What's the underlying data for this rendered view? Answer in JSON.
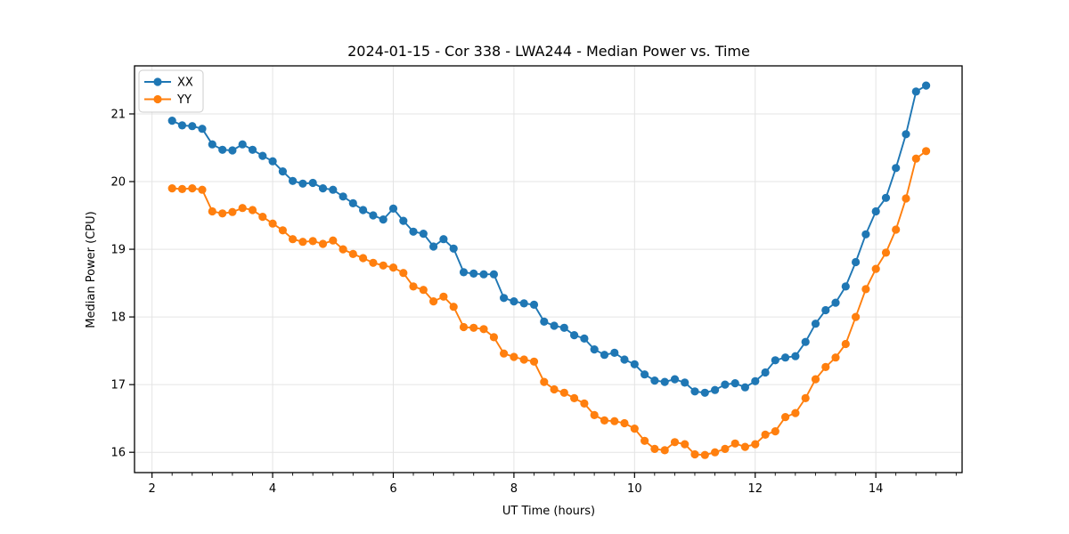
{
  "chart_data": {
    "type": "line",
    "title": "2024-01-15 - Cor 338 - LWA244 - Median Power vs. Time",
    "xlabel": "UT Time (hours)",
    "ylabel": "Median Power (CPU)",
    "xlim": [
      1.71,
      15.43
    ],
    "ylim": [
      15.7,
      21.71
    ],
    "xticks": [
      2,
      4,
      6,
      8,
      10,
      12,
      14
    ],
    "yticks": [
      16,
      17,
      18,
      19,
      20,
      21
    ],
    "x_minor_tick_step": 0.3333,
    "grid": true,
    "grid_color": "#e4e4e4",
    "legend_position": "upper left",
    "x": [
      2.333,
      2.5,
      2.667,
      2.833,
      3.0,
      3.167,
      3.333,
      3.5,
      3.667,
      3.833,
      4.0,
      4.167,
      4.333,
      4.5,
      4.667,
      4.833,
      5.0,
      5.167,
      5.333,
      5.5,
      5.667,
      5.833,
      6.0,
      6.167,
      6.333,
      6.5,
      6.667,
      6.833,
      7.0,
      7.167,
      7.333,
      7.5,
      7.667,
      7.833,
      8.0,
      8.167,
      8.333,
      8.5,
      8.667,
      8.833,
      9.0,
      9.167,
      9.333,
      9.5,
      9.667,
      9.833,
      10.0,
      10.167,
      10.333,
      10.5,
      10.667,
      10.833,
      11.0,
      11.167,
      11.333,
      11.5,
      11.667,
      11.833,
      12.0,
      12.167,
      12.333,
      12.5,
      12.667,
      12.833,
      13.0,
      13.167,
      13.333,
      13.5,
      13.667,
      13.833,
      14.0,
      14.167,
      14.333,
      14.5,
      14.667,
      14.833
    ],
    "series": [
      {
        "name": "XX",
        "color": "#1f77b4",
        "marker": "circle",
        "values": [
          20.9,
          20.83,
          20.82,
          20.78,
          20.55,
          20.47,
          20.46,
          20.55,
          20.47,
          20.38,
          20.3,
          20.15,
          20.01,
          19.97,
          19.98,
          19.9,
          19.88,
          19.78,
          19.68,
          19.58,
          19.5,
          19.44,
          19.6,
          19.42,
          19.26,
          19.23,
          19.04,
          19.15,
          19.01,
          18.66,
          18.64,
          18.63,
          18.63,
          18.28,
          18.23,
          18.2,
          18.18,
          17.93,
          17.87,
          17.84,
          17.73,
          17.68,
          17.52,
          17.44,
          17.47,
          17.37,
          17.3,
          17.15,
          17.06,
          17.04,
          17.08,
          17.03,
          16.9,
          16.88,
          16.92,
          17.0,
          17.02,
          16.96,
          17.05,
          17.18,
          17.36,
          17.4,
          17.42,
          17.63,
          17.9,
          18.1,
          18.21,
          18.45,
          18.81,
          19.22,
          19.56,
          19.76,
          20.2,
          20.7,
          21.33,
          21.42
        ]
      },
      {
        "name": "YY",
        "color": "#ff7f0e",
        "marker": "circle",
        "values": [
          19.9,
          19.89,
          19.9,
          19.88,
          19.56,
          19.53,
          19.55,
          19.61,
          19.58,
          19.48,
          19.38,
          19.28,
          19.15,
          19.11,
          19.12,
          19.08,
          19.13,
          19.0,
          18.93,
          18.87,
          18.8,
          18.76,
          18.73,
          18.65,
          18.45,
          18.4,
          18.23,
          18.3,
          18.15,
          17.85,
          17.84,
          17.82,
          17.7,
          17.46,
          17.41,
          17.37,
          17.34,
          17.04,
          16.93,
          16.88,
          16.8,
          16.72,
          16.55,
          16.47,
          16.46,
          16.43,
          16.35,
          16.17,
          16.05,
          16.03,
          16.15,
          16.12,
          15.97,
          15.96,
          16.0,
          16.05,
          16.13,
          16.08,
          16.12,
          16.26,
          16.31,
          16.52,
          16.58,
          16.8,
          17.08,
          17.26,
          17.4,
          17.6,
          18.0,
          18.41,
          18.71,
          18.95,
          19.29,
          19.75,
          20.34,
          20.45
        ]
      }
    ]
  }
}
